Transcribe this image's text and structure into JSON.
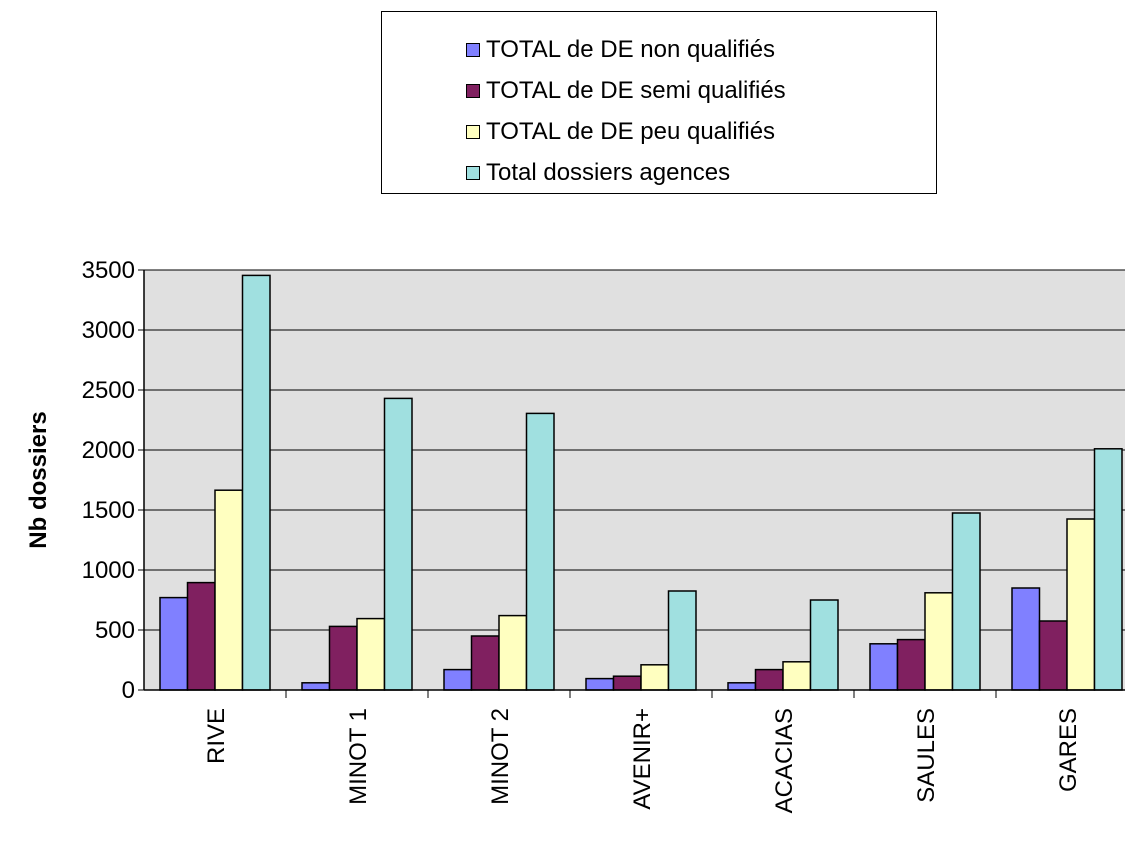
{
  "chart_data": {
    "type": "bar",
    "ylabel": "Nb dossiers",
    "xlabel": "",
    "ylim": [
      0,
      3500
    ],
    "yticks": [
      0,
      500,
      1000,
      1500,
      2000,
      2500,
      3000,
      3500
    ],
    "grid": true,
    "legend_position": "top",
    "categories": [
      "RIVE",
      "MINOT 1",
      "MINOT 2",
      "AVENIR+",
      "ACACIAS",
      "SAULES",
      "GARES"
    ],
    "series": [
      {
        "name": "TOTAL de DE non qualifiés",
        "color": "#8080ff",
        "values": [
          770,
          60,
          170,
          95,
          60,
          385,
          850
        ]
      },
      {
        "name": "TOTAL de DE semi qualifiés",
        "color": "#802060",
        "values": [
          895,
          530,
          450,
          115,
          170,
          420,
          575
        ]
      },
      {
        "name": "TOTAL de DE peu qualifiés",
        "color": "#ffffc0",
        "values": [
          1665,
          595,
          620,
          210,
          235,
          810,
          1425
        ]
      },
      {
        "name": "Total dossiers agences",
        "color": "#a0e0e0",
        "values": [
          3455,
          2430,
          2305,
          825,
          750,
          1475,
          2010
        ]
      }
    ]
  }
}
